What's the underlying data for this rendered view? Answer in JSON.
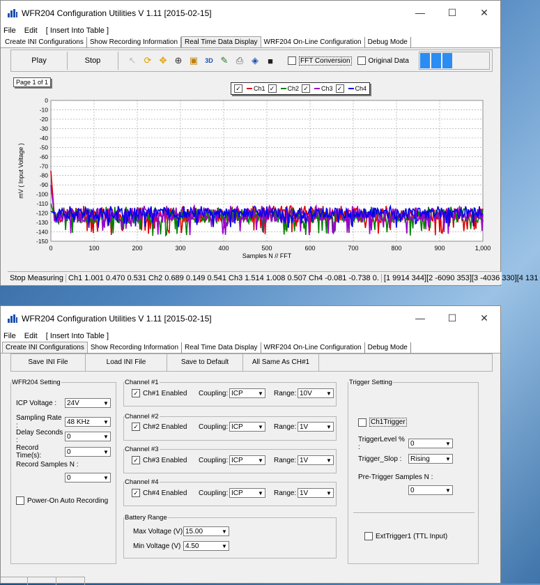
{
  "window1": {
    "title": "WFR204 Configuration Utilities V 1.11 [2015-02-15]",
    "menu": [
      "File",
      "Edit",
      "[ Insert Into Table ]"
    ],
    "tabs": [
      "Create INI Configurations",
      "Show Recording Information",
      "Real Time Data Display",
      "WRF204 On-Line Configuration",
      "Debug Mode"
    ],
    "active_tab": 2,
    "toolbar": {
      "play": "Play",
      "stop": "Stop",
      "fft": "FFT Conversion",
      "original": "Original Data",
      "icon_3d": "3D"
    },
    "page_label": "Page 1 of 1",
    "legend": [
      "Ch1",
      "Ch2",
      "Ch3",
      "Ch4"
    ],
    "status": {
      "state": "Stop Measuring",
      "values": "Ch1 1.001 0.470 0.531 Ch2 0.689 0.149 0.541 Ch3 1.514 1.008 0.507 Ch4 -0.081 -0.738 0.",
      "coords": "[1 9914 344][2 -6090 353][3 -4036 330][4 131"
    }
  },
  "chart_data": {
    "type": "line",
    "xlabel": "Samples N // FFT",
    "ylabel": "mV ( Input Voltage )",
    "xlim": [
      0,
      1000
    ],
    "ylim": [
      -150,
      0
    ],
    "x_ticks": [
      "0",
      "100",
      "200",
      "300",
      "400",
      "500",
      "600",
      "700",
      "800",
      "900",
      "1,000"
    ],
    "y_ticks": [
      "0",
      "-10",
      "-20",
      "-30",
      "-40",
      "-50",
      "-60",
      "-70",
      "-80",
      "-90",
      "-100",
      "-110",
      "-120",
      "-130",
      "-140",
      "-150"
    ],
    "grid": true,
    "series": [
      {
        "name": "Ch1",
        "color": "#e00000",
        "baseline": -122,
        "spread": 8,
        "start": -75
      },
      {
        "name": "Ch2",
        "color": "#008000",
        "baseline": -123,
        "spread": 8,
        "start": -110
      },
      {
        "name": "Ch3",
        "color": "#9900cc",
        "baseline": -122,
        "spread": 8,
        "start": -90
      },
      {
        "name": "Ch4",
        "color": "#0000ee",
        "baseline": -120,
        "spread": 6,
        "start": -118
      }
    ]
  },
  "window2": {
    "title": "WFR204 Configuration Utilities V 1.11 [2015-02-15]",
    "menu": [
      "File",
      "Edit",
      "[ Insert Into Table ]"
    ],
    "tabs": [
      "Create INI Configurations",
      "Show Recording Information",
      "Real Time Data Display",
      "WRF204 On-Line Configuration",
      "Debug Mode"
    ],
    "active_tab": 0,
    "buttons": [
      "Save INI File",
      "Load INI File",
      "Save to Default",
      "All Same As CH#1"
    ],
    "wfr_setting": {
      "legend": "WFR204 Setting",
      "icp_label": "ICP Voltage :",
      "icp_value": "24V",
      "rate_label": "Sampling Rate :",
      "rate_value": "48 KHz",
      "delay_label": "Delay Seconds :",
      "delay_value": "0",
      "record_label": "Record Time(s):",
      "record_value": "0",
      "samples_label": "Record Samples N :",
      "samples_value": "0",
      "auto_label": "Power-On Auto Recording"
    },
    "channels": [
      {
        "legend": "Channel #1",
        "enabled": "Ch#1 Enabled",
        "coupling_label": "Coupling:",
        "coupling": "ICP",
        "range_label": "Range:",
        "range": "10V"
      },
      {
        "legend": "Channel #2",
        "enabled": "Ch#2 Enabled",
        "coupling_label": "Coupling:",
        "coupling": "ICP",
        "range_label": "Range:",
        "range": "1V"
      },
      {
        "legend": "Channel #3",
        "enabled": "Ch#3 Enabled",
        "coupling_label": "Coupling:",
        "coupling": "ICP",
        "range_label": "Range:",
        "range": "1V"
      },
      {
        "legend": "Channel #4",
        "enabled": "Ch#4 Enabled",
        "coupling_label": "Coupling:",
        "coupling": "ICP",
        "range_label": "Range:",
        "range": "1V"
      }
    ],
    "battery": {
      "legend": "Battery Range",
      "max_label": "Max Voltage (V)",
      "max_value": "15.00",
      "min_label": "Min Voltage (V)",
      "min_value": "4.50"
    },
    "trigger": {
      "legend": "Trigger Setting",
      "ch1trigger": "Ch1Trigger",
      "level_label": "TriggerLevel % :",
      "level_value": "0",
      "slop_label": "Trigger_Slop :",
      "slop_value": "Rising",
      "pre_label": "Pre-Trigger Samples N :",
      "pre_value": "0",
      "ext_label": "ExtTrigger1 (TTL Input)"
    }
  }
}
